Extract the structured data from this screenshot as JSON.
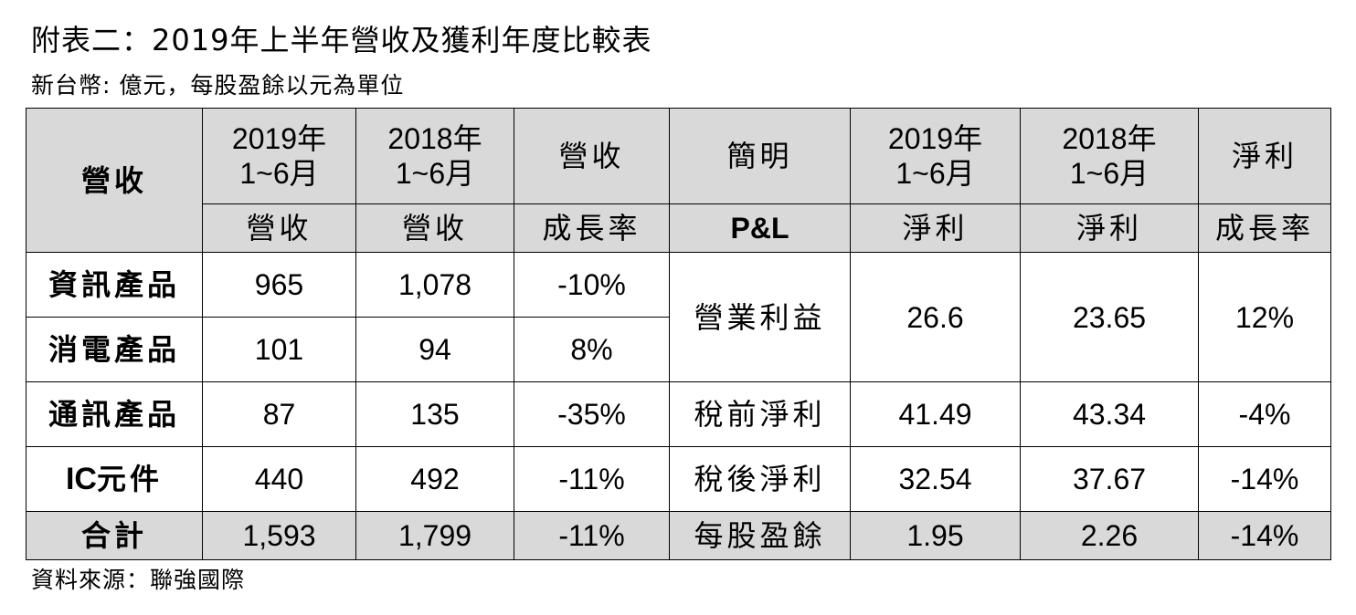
{
  "title": "附表二：2019年上半年營收及獲利年度比較表",
  "unit_note": "新台幣: 億元，每股盈餘以元為單位",
  "source": "資料來源：聯強國際",
  "header": {
    "revenue_label": "營收",
    "col_2019": {
      "year": "2019年",
      "period": "1~6月"
    },
    "col_2018": {
      "year": "2018年",
      "period": "1~6月"
    },
    "rev_sub": "營收",
    "rev_growth_top": "營收",
    "rev_growth_bottom": "成長率",
    "pl_top": "簡明",
    "pl_bottom": "P&L",
    "np_2019": {
      "year": "2019年",
      "period": "1~6月"
    },
    "np_2018": {
      "year": "2018年",
      "period": "1~6月"
    },
    "np_sub": "淨利",
    "np_growth_top": "淨利",
    "np_growth_bottom": "成長率"
  },
  "revenue_rows": [
    {
      "label": "資訊產品",
      "v2019": "965",
      "v2018": "1,078",
      "growth": "-10%"
    },
    {
      "label": "消電產品",
      "v2019": "101",
      "v2018": "94",
      "growth": "8%"
    },
    {
      "label": "通訊產品",
      "v2019": "87",
      "v2018": "135",
      "growth": "-35%"
    },
    {
      "label_latin": "IC",
      "label_cjk": "元件",
      "v2019": "440",
      "v2018": "492",
      "growth": "-11%"
    }
  ],
  "revenue_total": {
    "label": "合計",
    "v2019": "1,593",
    "v2018": "1,799",
    "growth": "-11%"
  },
  "pl_rows": [
    {
      "label": "營業利益",
      "v2019": "26.6",
      "v2018": "23.65",
      "growth": "12%"
    },
    {
      "label": "稅前淨利",
      "v2019": "41.49",
      "v2018": "43.34",
      "growth": "-4%"
    },
    {
      "label": "稅後淨利",
      "v2019": "32.54",
      "v2018": "37.67",
      "growth": "-14%"
    }
  ],
  "pl_total": {
    "label": "每股盈餘",
    "v2019": "1.95",
    "v2018": "2.26",
    "growth": "-14%"
  }
}
